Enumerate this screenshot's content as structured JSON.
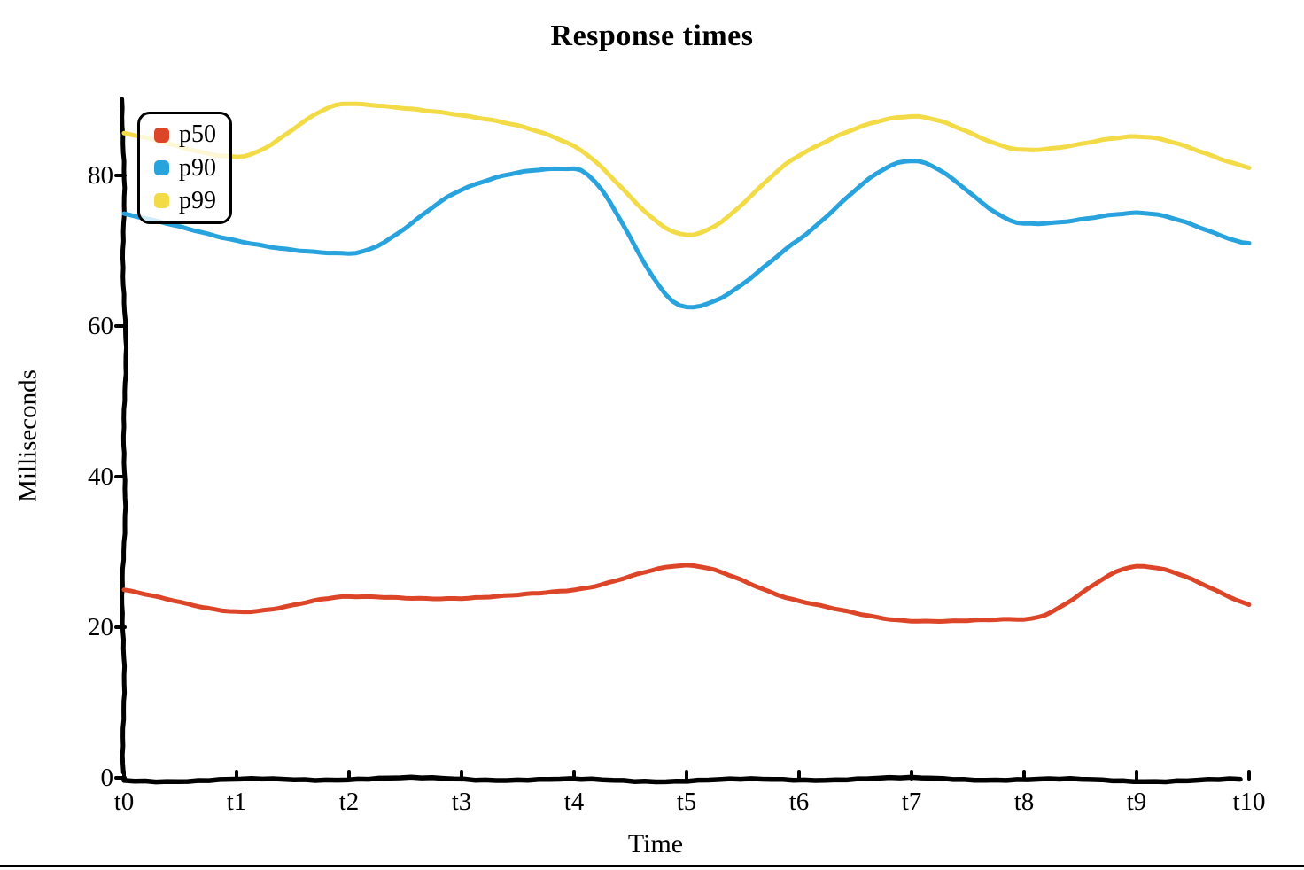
{
  "chart_data": {
    "type": "line",
    "title": "Response times",
    "xlabel": "Time",
    "ylabel": "Milliseconds",
    "x": [
      "t0",
      "t1",
      "t2",
      "t3",
      "t4",
      "t5",
      "t6",
      "t7",
      "t8",
      "t9",
      "t10"
    ],
    "y_ticks": [
      0,
      20,
      40,
      60,
      80
    ],
    "ylim": [
      0,
      90
    ],
    "grid": false,
    "legend_position": "upper-left",
    "series": [
      {
        "name": "p50",
        "color": "#dd4528",
        "values": [
          25,
          22,
          24,
          24,
          25,
          28,
          23.5,
          21,
          21,
          28,
          23
        ]
      },
      {
        "name": "p90",
        "color": "#28a3dd",
        "values": [
          75,
          71.5,
          69.5,
          78,
          81,
          62.5,
          71.5,
          82,
          73.5,
          75,
          71
        ]
      },
      {
        "name": "p99",
        "color": "#f3db47",
        "values": [
          85.5,
          82.5,
          89.5,
          88,
          84,
          72,
          82.5,
          88,
          83.5,
          85,
          81
        ]
      }
    ]
  },
  "style": {
    "axis_color": "#000000",
    "text_color": "#000000",
    "background": "#ffffff"
  }
}
